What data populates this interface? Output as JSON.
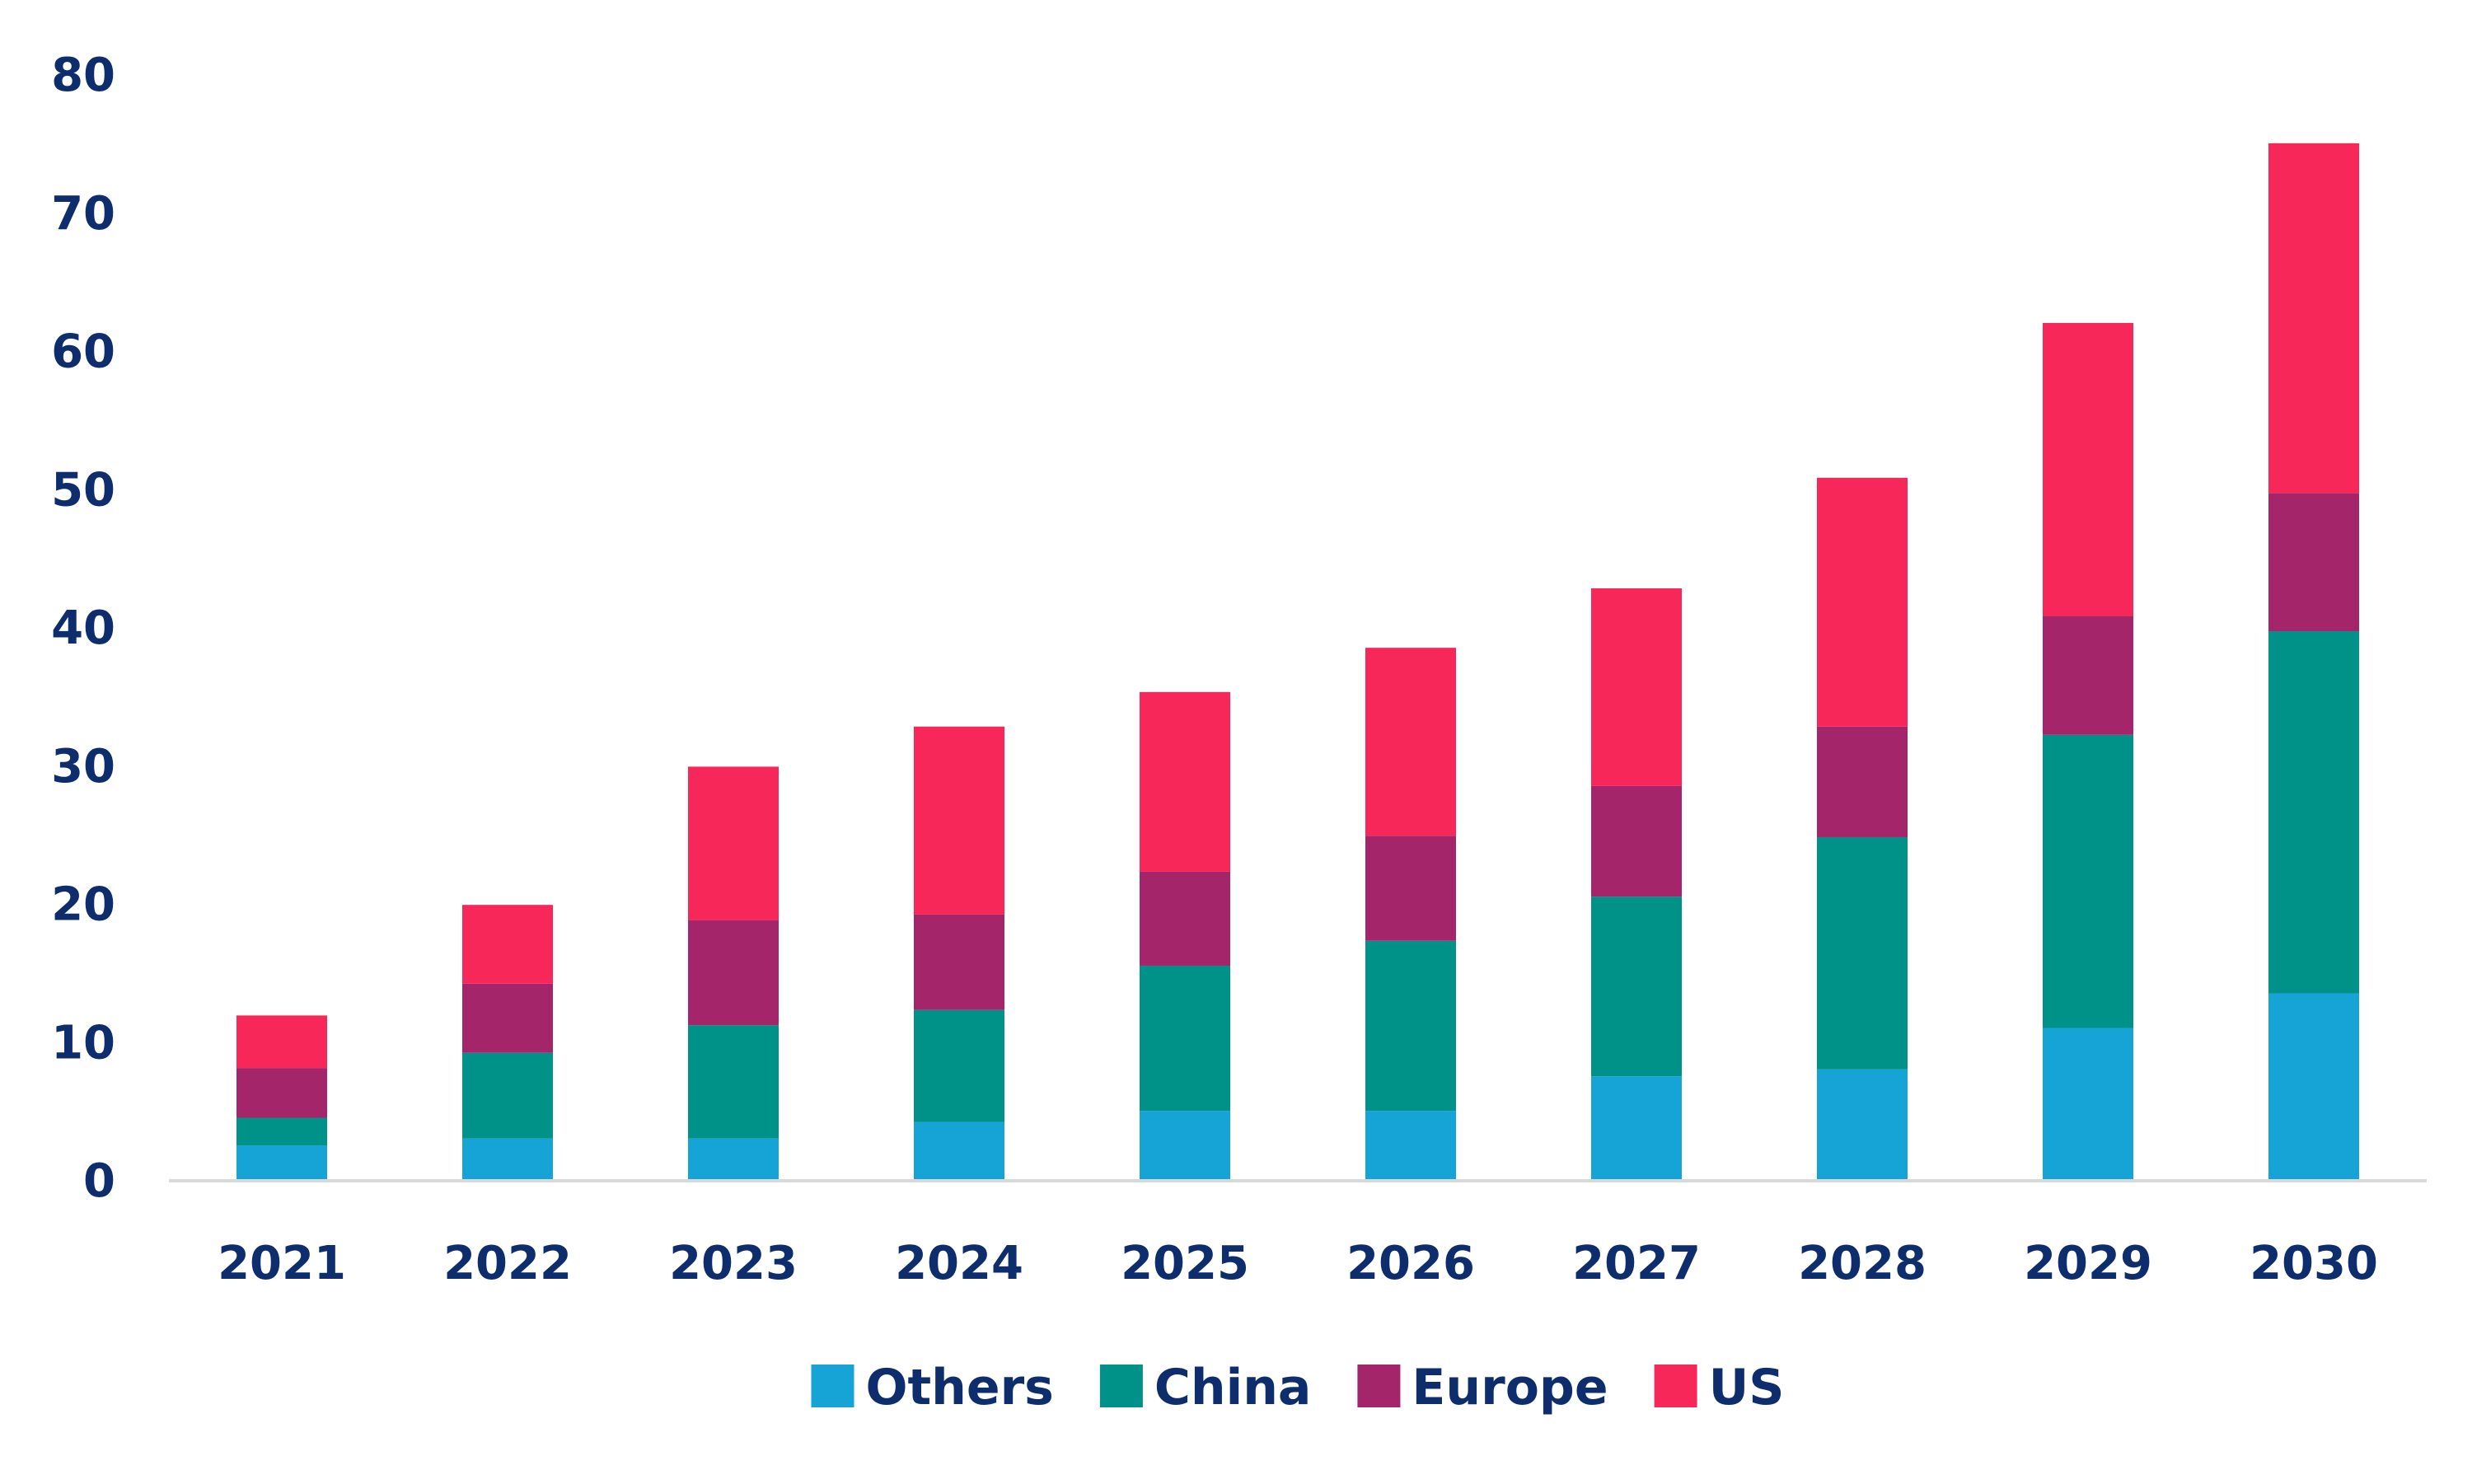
{
  "chart_data": {
    "type": "bar",
    "stacked": true,
    "title": "",
    "xlabel": "",
    "ylabel": "",
    "ylim": [
      0,
      80
    ],
    "yticks": [
      0,
      10,
      20,
      30,
      40,
      50,
      60,
      70,
      80
    ],
    "grid": false,
    "legend_position": "bottom",
    "categories": [
      "2021",
      "2022",
      "2023",
      "2024",
      "2025",
      "2026",
      "2027",
      "2028",
      "2029",
      "2030"
    ],
    "series": [
      {
        "name": "Others",
        "color": "#16a3d6",
        "values": [
          2.5,
          3,
          3,
          4.2,
          5,
          5,
          7.5,
          8,
          11,
          13.5
        ]
      },
      {
        "name": "China",
        "color": "#009188",
        "values": [
          2,
          6.2,
          8.2,
          8.1,
          10.5,
          12.3,
          13,
          16.8,
          21.2,
          26.2
        ]
      },
      {
        "name": "Europe",
        "color": "#a5256b",
        "values": [
          3.6,
          5,
          7.6,
          6.9,
          6.8,
          7.6,
          8,
          8,
          8.6,
          10
        ]
      },
      {
        "name": "US",
        "color": "#f7275a",
        "values": [
          3.8,
          5.7,
          11.1,
          13.6,
          13,
          13.6,
          14.3,
          18,
          21.2,
          25.3
        ]
      }
    ]
  }
}
